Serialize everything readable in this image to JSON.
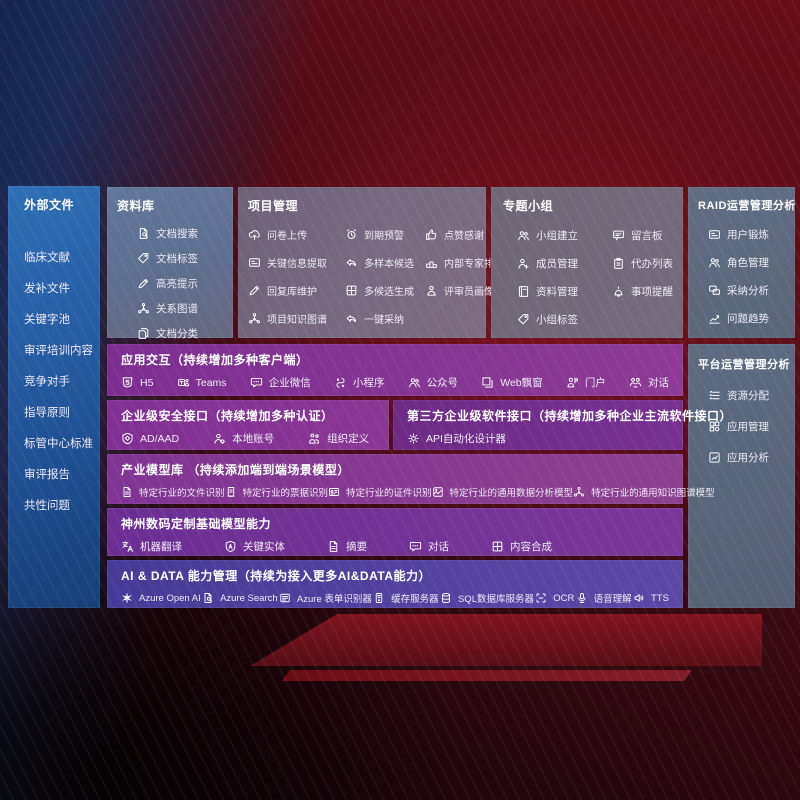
{
  "colors": {
    "left_panel_blue": "#2a64ab",
    "band_purple": "#7e2f92",
    "band_indigo": "#4a3d99",
    "side_panel_slate": "#5e7092",
    "background_red": "#5a0c16",
    "background_navy": "#16254f"
  },
  "diagram": {
    "external_files": {
      "title": "外部文件",
      "items": [
        {
          "label": "临床文献"
        },
        {
          "label": "发补文件"
        },
        {
          "label": "关键字池"
        },
        {
          "label": "审评培训内容"
        },
        {
          "label": "竞争对手"
        },
        {
          "label": "指导原则"
        },
        {
          "label": "标管中心标准"
        },
        {
          "label": "审评报告"
        },
        {
          "label": "共性问题"
        }
      ]
    },
    "repository": {
      "title": "资料库",
      "items": [
        {
          "label": "文档搜索",
          "icon": "doc-search-icon"
        },
        {
          "label": "文档标签",
          "icon": "tag-icon"
        },
        {
          "label": "高亮提示",
          "icon": "highlight-pen-icon"
        },
        {
          "label": "关系图谱",
          "icon": "relation-graph-icon"
        },
        {
          "label": "文档分类",
          "icon": "doc-category-icon"
        }
      ]
    },
    "project_management": {
      "title": "项目管理",
      "items": [
        {
          "label": "问卷上传",
          "icon": "cloud-upload-icon"
        },
        {
          "label": "到期预警",
          "icon": "alarm-icon"
        },
        {
          "label": "点赞感谢",
          "icon": "thumbs-up-icon"
        },
        {
          "label": "关键信息提取",
          "icon": "info-extract-icon"
        },
        {
          "label": "多样本候选",
          "icon": "multi-sample-icon"
        },
        {
          "label": "内部专家排名",
          "icon": "ranking-icon"
        },
        {
          "label": "回复库维护",
          "icon": "edit-pen-icon"
        },
        {
          "label": "多候选生成",
          "icon": "multi-generate-icon"
        },
        {
          "label": "评审员画像",
          "icon": "reviewer-portrait-icon"
        },
        {
          "label": "项目知识图谱",
          "icon": "knowledge-graph-icon"
        },
        {
          "label": "一键采纳",
          "icon": "one-click-adopt-icon"
        }
      ]
    },
    "special_groups": {
      "title": "专题小组",
      "items": [
        {
          "label": "小组建立",
          "icon": "group-create-icon"
        },
        {
          "label": "留言板",
          "icon": "bbs-icon"
        },
        {
          "label": "成员管理",
          "icon": "member-manage-icon"
        },
        {
          "label": "代办列表",
          "icon": "todo-list-icon"
        },
        {
          "label": "资料管理",
          "icon": "material-manage-icon"
        },
        {
          "label": "事项提醒",
          "icon": "reminder-bell-icon"
        },
        {
          "label": "小组标签",
          "icon": "group-tag-icon"
        }
      ]
    },
    "raid_analysis": {
      "title": "RAID运营管理分析",
      "items": [
        {
          "label": "用户锻炼",
          "icon": "user-card-icon"
        },
        {
          "label": "角色管理",
          "icon": "role-manage-icon"
        },
        {
          "label": "采纳分析",
          "icon": "adopt-analysis-icon"
        },
        {
          "label": "问题趋势",
          "icon": "trend-chart-icon"
        }
      ]
    },
    "platform_analysis": {
      "title": "平台运营管理分析",
      "items": [
        {
          "label": "资源分配",
          "icon": "resource-list-icon"
        },
        {
          "label": "应用管理",
          "icon": "app-grid-icon"
        },
        {
          "label": "应用分析",
          "icon": "app-analysis-icon"
        }
      ]
    },
    "app_interaction": {
      "title": "应用交互（持续增加多种客户端）",
      "items": [
        {
          "label": "H5",
          "icon": "h5-icon"
        },
        {
          "label": "Teams",
          "icon": "teams-icon"
        },
        {
          "label": "企业微信",
          "icon": "wechat-work-icon"
        },
        {
          "label": "小程序",
          "icon": "miniprogram-icon"
        },
        {
          "label": "公众号",
          "icon": "official-account-icon"
        },
        {
          "label": "Web飘窗",
          "icon": "web-window-icon"
        },
        {
          "label": "门户",
          "icon": "portal-icon"
        },
        {
          "label": "对话",
          "icon": "conversation-icon"
        }
      ]
    },
    "security_interface": {
      "title": "企业级安全接口（持续增加多种认证）",
      "items": [
        {
          "label": "AD/AAD",
          "icon": "ad-shield-icon"
        },
        {
          "label": "本地账号",
          "icon": "local-account-icon"
        },
        {
          "label": "组织定义",
          "icon": "org-define-icon"
        }
      ]
    },
    "third_party_interface": {
      "title": "第三方企业级软件接口（持续增加多种企业主流软件接口）",
      "items": [
        {
          "label": "API自动化设计器",
          "icon": "api-gear-icon"
        }
      ]
    },
    "industry_models": {
      "title": "产业模型库 （持续添加端到端场景模型）",
      "items": [
        {
          "label": "特定行业的文件识别",
          "icon": "file-recognition-icon"
        },
        {
          "label": "特定行业的票据识别",
          "icon": "bill-recognition-icon"
        },
        {
          "label": "特定行业的证件识别",
          "icon": "cert-recognition-icon"
        },
        {
          "label": "特定行业的通用数据分析模型",
          "icon": "data-analysis-model-icon"
        },
        {
          "label": "特定行业的通用知识图谱模型",
          "icon": "kg-model-icon"
        }
      ]
    },
    "custom_models": {
      "title": "神州数码定制基础模型能力",
      "items": [
        {
          "label": "机器翻译",
          "icon": "translate-icon"
        },
        {
          "label": "关键实体",
          "icon": "entity-icon"
        },
        {
          "label": "摘要",
          "icon": "summary-icon"
        },
        {
          "label": "对话",
          "icon": "dialog-icon"
        },
        {
          "label": "内容合成",
          "icon": "compose-icon"
        }
      ]
    },
    "ai_data": {
      "title": "AI & DATA 能力管理（持续为接入更多AI&DATA能力）",
      "items": [
        {
          "label": "Azure Open AI",
          "icon": "openai-icon"
        },
        {
          "label": "Azure Search",
          "icon": "azure-search-icon"
        },
        {
          "label": "Azure 表单识别器",
          "icon": "form-recognizer-icon"
        },
        {
          "label": "缓存服务器",
          "icon": "cache-server-icon"
        },
        {
          "label": "SQL数据库服务器",
          "icon": "sql-db-icon"
        },
        {
          "label": "OCR",
          "icon": "ocr-icon"
        },
        {
          "label": "语音理解",
          "icon": "speech-icon"
        },
        {
          "label": "TTS",
          "icon": "tts-icon"
        }
      ]
    }
  }
}
